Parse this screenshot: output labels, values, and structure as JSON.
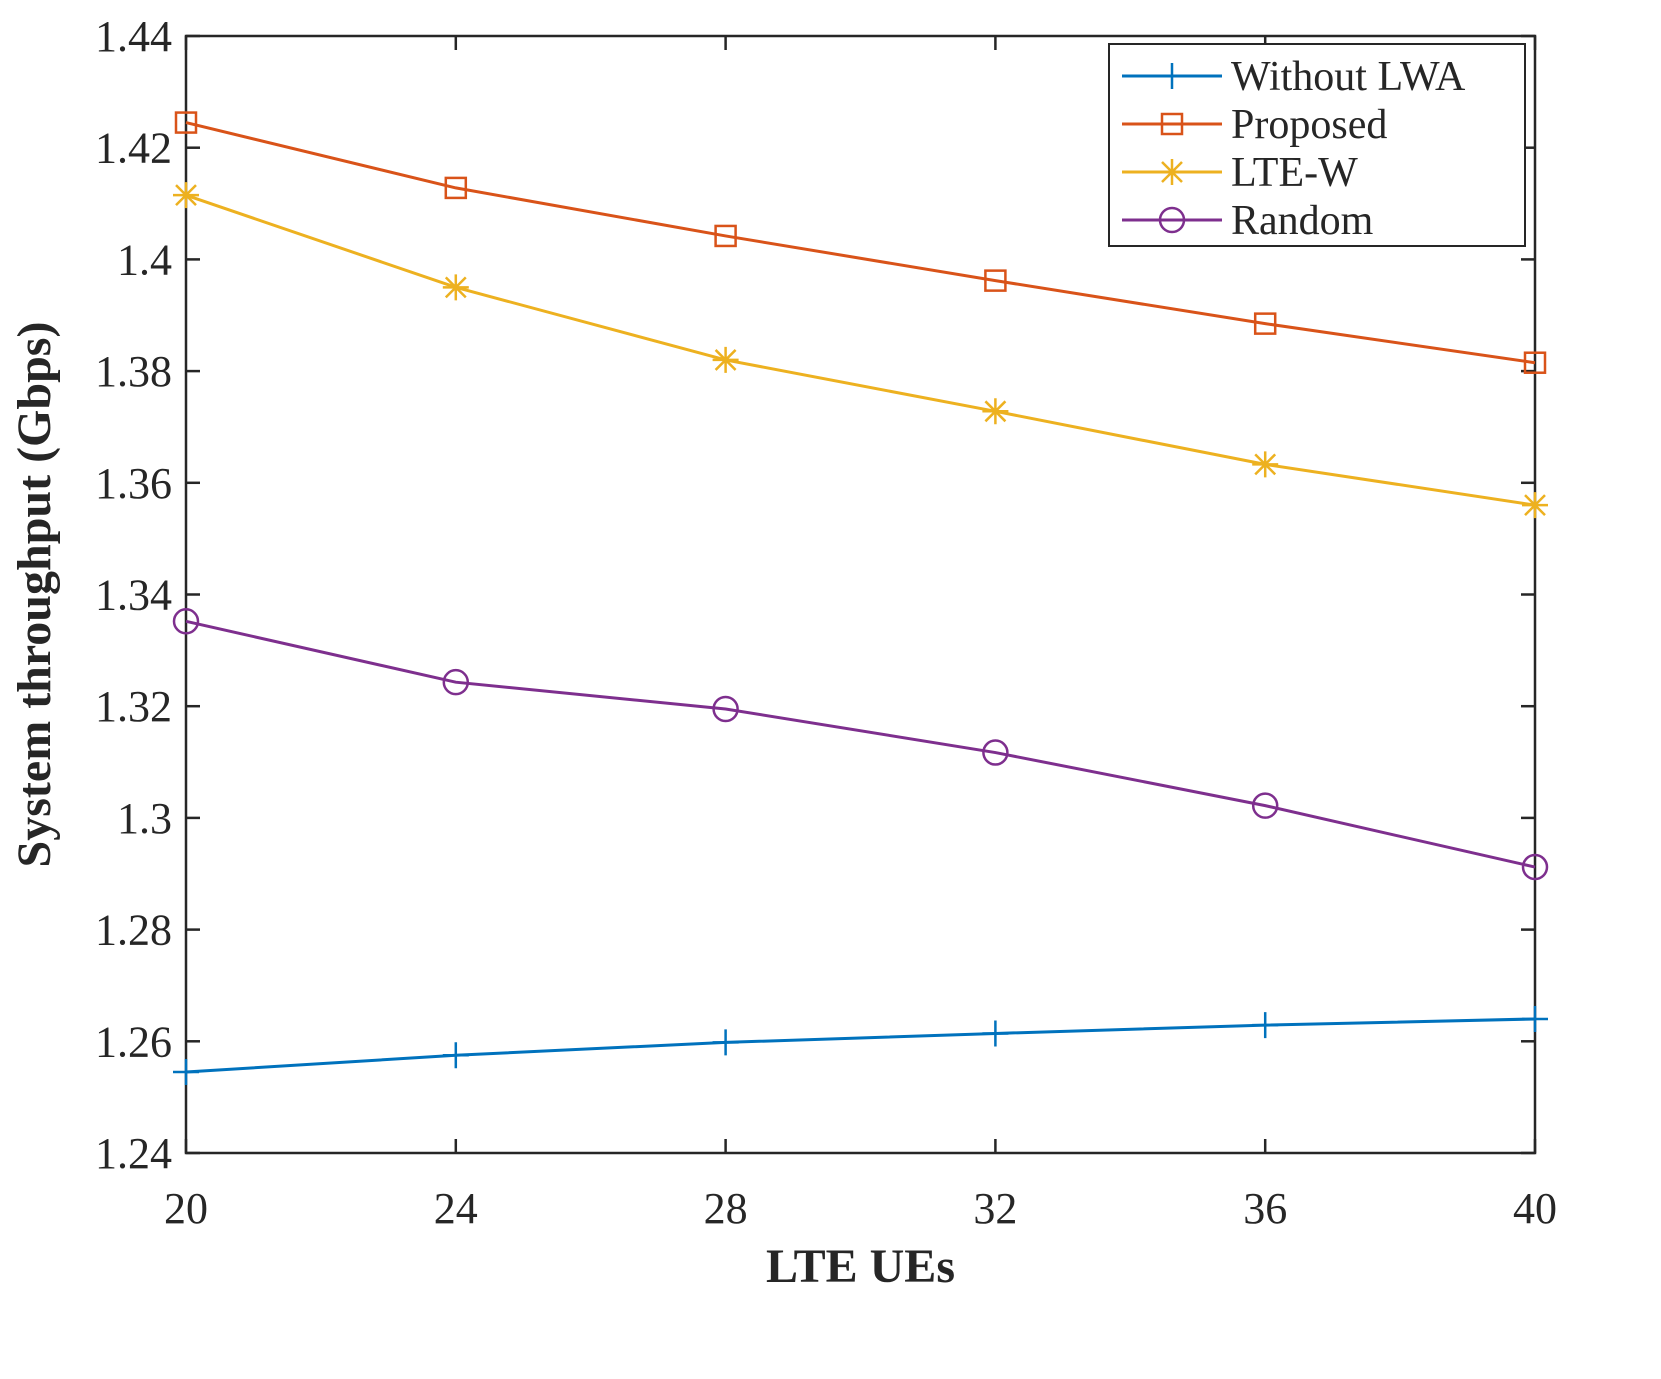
{
  "chart_data": {
    "type": "line",
    "title": "",
    "xlabel": "LTE UEs",
    "ylabel": "System throughput (Gbps)",
    "x": [
      20,
      24,
      28,
      32,
      36,
      40
    ],
    "xlim": [
      20,
      40
    ],
    "ylim": [
      1.24,
      1.44
    ],
    "xticks": [
      "20",
      "24",
      "28",
      "32",
      "36",
      "40"
    ],
    "yticks": [
      "1.24",
      "1.26",
      "1.28",
      "1.3",
      "1.32",
      "1.34",
      "1.36",
      "1.38",
      "1.4",
      "1.42",
      "1.44"
    ],
    "ytick_values": [
      1.24,
      1.26,
      1.28,
      1.3,
      1.32,
      1.34,
      1.36,
      1.38,
      1.4,
      1.42,
      1.44
    ],
    "grid": false,
    "legend_position": "top-right",
    "series": [
      {
        "name": "Without LWA",
        "color": "#0072BD",
        "marker": "plus",
        "values": [
          1.2545,
          1.2575,
          1.2598,
          1.2614,
          1.2629,
          1.264
        ]
      },
      {
        "name": "Proposed",
        "color": "#D95319",
        "marker": "square",
        "values": [
          1.4245,
          1.4128,
          1.4042,
          1.3962,
          1.3885,
          1.3815
        ]
      },
      {
        "name": "LTE-W",
        "color": "#EDB120",
        "marker": "asterisk",
        "values": [
          1.4115,
          1.395,
          1.382,
          1.3728,
          1.3633,
          1.356
        ]
      },
      {
        "name": "Random",
        "color": "#7E2F8E",
        "marker": "circle",
        "values": [
          1.3352,
          1.3243,
          1.3195,
          1.3117,
          1.3022,
          1.2912
        ]
      }
    ]
  }
}
